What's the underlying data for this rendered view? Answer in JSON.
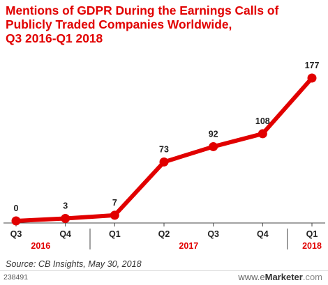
{
  "chart_data": {
    "type": "line",
    "title_lines": [
      "Mentions of GDPR During the Earnings Calls of",
      "Publicly Traded Companies Worldwide,",
      "Q3 2016-Q1 2018"
    ],
    "categories": [
      "Q3",
      "Q4",
      "Q1",
      "Q2",
      "Q3",
      "Q4",
      "Q1"
    ],
    "years": [
      {
        "label": "2016"
      },
      {
        "label": "2017"
      },
      {
        "label": "2018"
      }
    ],
    "series": [
      {
        "values": [
          0,
          3,
          7,
          73,
          92,
          108,
          177
        ],
        "color": "#e10000"
      }
    ],
    "ylim": [
      0,
      177
    ],
    "grid": false
  },
  "source": "Source: CB Insights, May 30, 2018",
  "footer_id": "238491",
  "brand": {
    "e": "www.e",
    "m": "Marketer",
    "dot": ".com"
  }
}
